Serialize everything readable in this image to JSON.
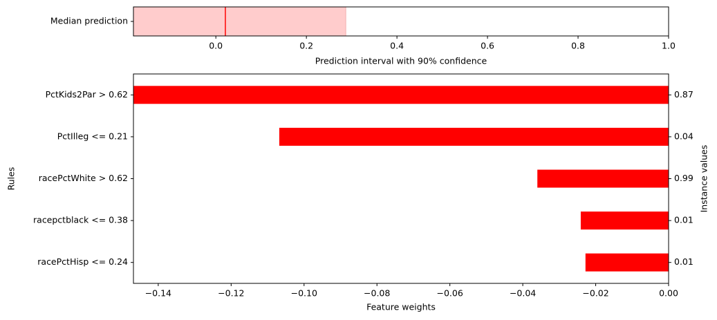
{
  "chart_data": [
    {
      "type": "interval",
      "categories": [
        "Median prediction"
      ],
      "interval": [
        -0.182,
        0.287
      ],
      "median": 0.021,
      "color": "#ffcccc",
      "median_color": "#ff0000",
      "xlabel": "Prediction interval with 90% confidence",
      "xlim": [
        -0.182,
        1.0
      ],
      "xticks": [
        {
          "value": 0,
          "label": "0.0"
        },
        0.2,
        0.4,
        0.6,
        0.8,
        {
          "value": 1,
          "label": "1.0"
        }
      ]
    },
    {
      "type": "barh",
      "categories": [
        "PctKids2Par > 0.62",
        "PctIlleg <= 0.21",
        "racePctWhite > 0.62",
        "racepctblack <= 0.38",
        "racePctHisp <= 0.24"
      ],
      "values": [
        -0.1468,
        -0.1068,
        -0.036,
        -0.0241,
        -0.0228
      ],
      "instance_values": [
        0.87,
        0.04,
        0.99,
        0.01,
        0.01
      ],
      "color": "#ff0000",
      "xlabel": "Feature weights",
      "ylabel": "Rules",
      "y2label": "Instance values",
      "xlim": [
        -0.1468,
        0
      ],
      "xticks": [
        {
          "value": -0.14,
          "label": "−0.14"
        },
        {
          "value": -0.12,
          "label": "−0.12"
        },
        {
          "value": -0.1,
          "label": "−0.10"
        },
        {
          "value": -0.08,
          "label": "−0.08"
        },
        {
          "value": -0.06,
          "label": "−0.06"
        },
        {
          "value": -0.04,
          "label": "−0.04"
        },
        {
          "value": -0.02,
          "label": "−0.02"
        },
        {
          "value": 0,
          "label": "0.00"
        }
      ]
    }
  ]
}
